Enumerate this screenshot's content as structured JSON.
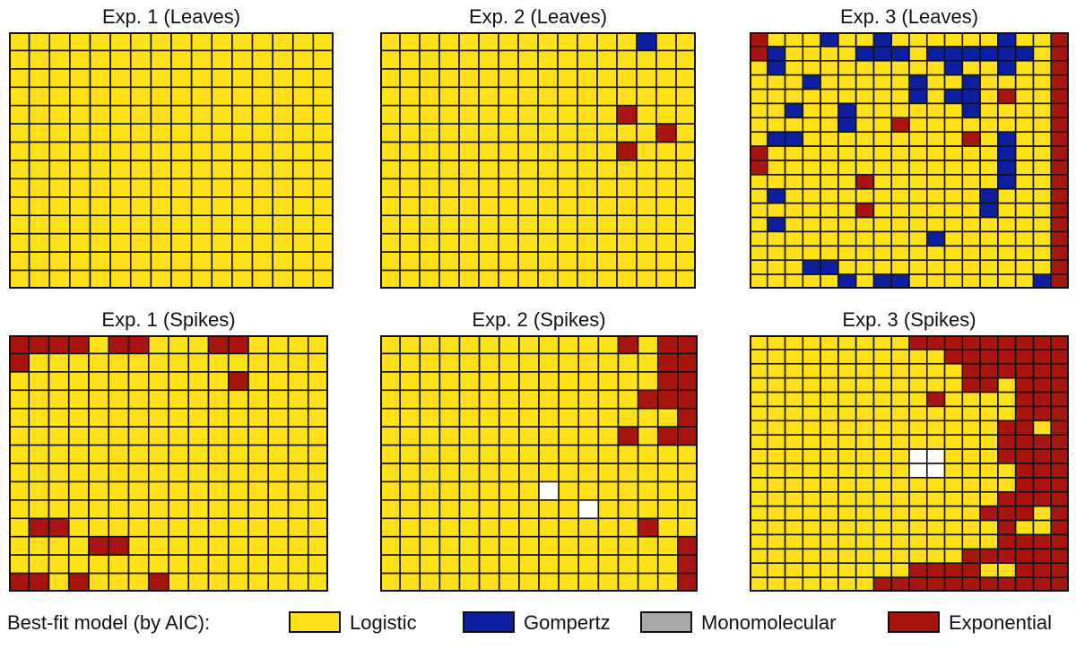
{
  "colors": {
    "Logistic": "#FFE11A",
    "Gompertz": "#0D1F9E",
    "Monomolecular": "#A9A9A9",
    "Exponential": "#A8150F",
    "Missing": "#FFFFFF",
    "gridline": "#111111"
  },
  "legend": {
    "title": "Best-fit model (by AIC):",
    "items": [
      {
        "key": "Logistic",
        "label": "Logistic"
      },
      {
        "key": "Gompertz",
        "label": "Gompertz"
      },
      {
        "key": "Monomolecular",
        "label": "Monomolecular"
      },
      {
        "key": "Exponential",
        "label": "Exponential"
      }
    ]
  },
  "chart_data": [
    {
      "type": "heatmap",
      "title": "Exp. 1 (Leaves)",
      "rows": 14,
      "cols": 16,
      "codes": {
        "L": "Logistic",
        "G": "Gompertz",
        "E": "Exponential",
        "W": "Missing"
      },
      "grid": [
        "LLLLLLLLLLLLLLLL",
        "LLLLLLLLLLLLLLLL",
        "LLLLLLLLLLLLLLLL",
        "LLLLLLLLLLLLLLLL",
        "LLLLLLLLLLLLLLLL",
        "LLLLLLLLLLLLLLLL",
        "LLLLLLLLLLLLLLLL",
        "LLLLLLLLLLLLLLLL",
        "LLLLLLLLLLLLLLLL",
        "LLLLLLLLLLLLLLLL",
        "LLLLLLLLLLLLLLLL",
        "LLLLLLLLLLLLLLLL",
        "LLLLLLLLLLLLLLLL",
        "LLLLLLLLLLLLLLLL"
      ]
    },
    {
      "type": "heatmap",
      "title": "Exp. 2 (Leaves)",
      "rows": 14,
      "cols": 16,
      "codes": {
        "L": "Logistic",
        "G": "Gompertz",
        "E": "Exponential",
        "W": "Missing"
      },
      "grid": [
        "LLLLLLLLLLLLLGLL",
        "LLLLLLLLLLLLLLLL",
        "LLLLLLLLLLLLLLLL",
        "LLLLLLLLLLLLLLLL",
        "LLLLLLLLLLLLELLL",
        "LLLLLLLLLLLLLLEL",
        "LLLLLLLLLLLLELLL",
        "LLLLLLLLLLLLLLLL",
        "LLLLLLLLLLLLLLLL",
        "LLLLLLLLLLLLLLLL",
        "LLLLLLLLLLLLLLLL",
        "LLLLLLLLLLLLLLLL",
        "LLLLLLLLLLLLLLLL",
        "LLLLLLLLLLLLLLLL"
      ]
    },
    {
      "type": "heatmap",
      "title": "Exp. 3 (Leaves)",
      "rows": 18,
      "cols": 18,
      "codes": {
        "L": "Logistic",
        "G": "Gompertz",
        "E": "Exponential",
        "W": "Missing"
      },
      "grid": [
        "ELLLGLLGLLLLLLGLLE",
        "EGLLLLGGGLGGGGGGLE",
        "LGLLLLLLLLLGLLGLLE",
        "LLLGLLLLLGLLGLLLLE",
        "LLLLLLLLLGLGGLELLE",
        "LLGLLGLLLLLLGLLLLE",
        "LLLLLGLLELLLLLLLLE",
        "LGGLLLLLLLLLELGLLE",
        "ELLLLLLLLLLLLLGLLE",
        "ELLLLLLLLLLLLLGLLE",
        "LLLLLLELLLLLLLGLLE",
        "LGLLLLLLLLLLLGLLLE",
        "LLLLLLELLLLLLGLLLE",
        "LGLLLLLLLLLLLLLLLE",
        "LLLLLLLLLLGLLLLLLE",
        "LLLLLLLLLLLLLLLLLE",
        "LLLGGLLLLLLLLLLLLE",
        "LLLLLGLGGLLLLLLLGE"
      ]
    },
    {
      "type": "heatmap",
      "title": "Exp. 1 (Spikes)",
      "rows": 14,
      "cols": 16,
      "codes": {
        "L": "Logistic",
        "G": "Gompertz",
        "E": "Exponential",
        "W": "Missing"
      },
      "grid": [
        "EEEELEELLLEELLLL",
        "ELLLLLLLLLLLLLLL",
        "LLLLLLLLLLLELLLL",
        "LLLLLLLLLLLLLLLL",
        "LLLLLLLLLLLLLLLL",
        "LLLLLLLLLLLLLLLL",
        "LLLLLLLLLLLLLLLL",
        "LLLLLLLLLLLLLLLL",
        "LLLLLLLLLLLLLLLL",
        "LLLLLLLLLLLLLLLL",
        "LEELLLLLLLLLLLLL",
        "LLLLEELLLLLLLLLL",
        "LLLLLLLLLLLLLLLL",
        "EELELLLELLLLLLLL"
      ]
    },
    {
      "type": "heatmap",
      "title": "Exp. 2 (Spikes)",
      "rows": 14,
      "cols": 16,
      "codes": {
        "L": "Logistic",
        "G": "Gompertz",
        "E": "Exponential",
        "W": "Missing"
      },
      "grid": [
        "LLLLLLLLLLLLELEE",
        "LLLLLLLLLLLLLLEE",
        "LLLLLLLLLLLLLLEE",
        "LLLLLLLLLLLLLEEE",
        "LLLLLLLLLLLLLLLE",
        "LLLLLLLLLLLLELEE",
        "LLLLLLLLLLLLLLLL",
        "LLLLLLLLLLLLLLLL",
        "LLLLLLLLWLLLLLLL",
        "LLLLLLLLLLWLLLLL",
        "LLLLLLLLLLLLLELL",
        "LLLLLLLLLLLLLLLE",
        "LLLLLLLLLLLLLLLE",
        "LLLLLLLLLLLLLLLE"
      ]
    },
    {
      "type": "heatmap",
      "title": "Exp. 3 (Spikes)",
      "rows": 18,
      "cols": 18,
      "codes": {
        "L": "Logistic",
        "G": "Gompertz",
        "E": "Exponential",
        "W": "Missing"
      },
      "grid": [
        "LLLLLLLLLEEEEEEEEE",
        "LLLLLLLLLLLEEEEEEE",
        "LLLLLLLLLLLLEEEEEE",
        "LLLLLLLLLLLLEELEEE",
        "LLLLLLLLLLELLLLEEE",
        "LLLLLLLLLLLLLLLEEE",
        "LLLLLLLLLLLLLLEELE",
        "LLLLLLLLLLLLLLEEEE",
        "LLLLLLLLLWWLLLEEEE",
        "LLLLLLLLLWWLLLLEEE",
        "LLLLLLLLLLLLLLLEEE",
        "LLLLLLLLLLLLLLEEEE",
        "LLLLLLLLLLLLLEEELE",
        "LLLLLLLLLLLLLLELLE",
        "LLLLLLLLLLLLLLEEEE",
        "LLLLLLLLLLLLEEEEEE",
        "LLLLLLLLLEEEELLEEE",
        "LLLLLLLEEEEEEEEEEE"
      ]
    }
  ]
}
